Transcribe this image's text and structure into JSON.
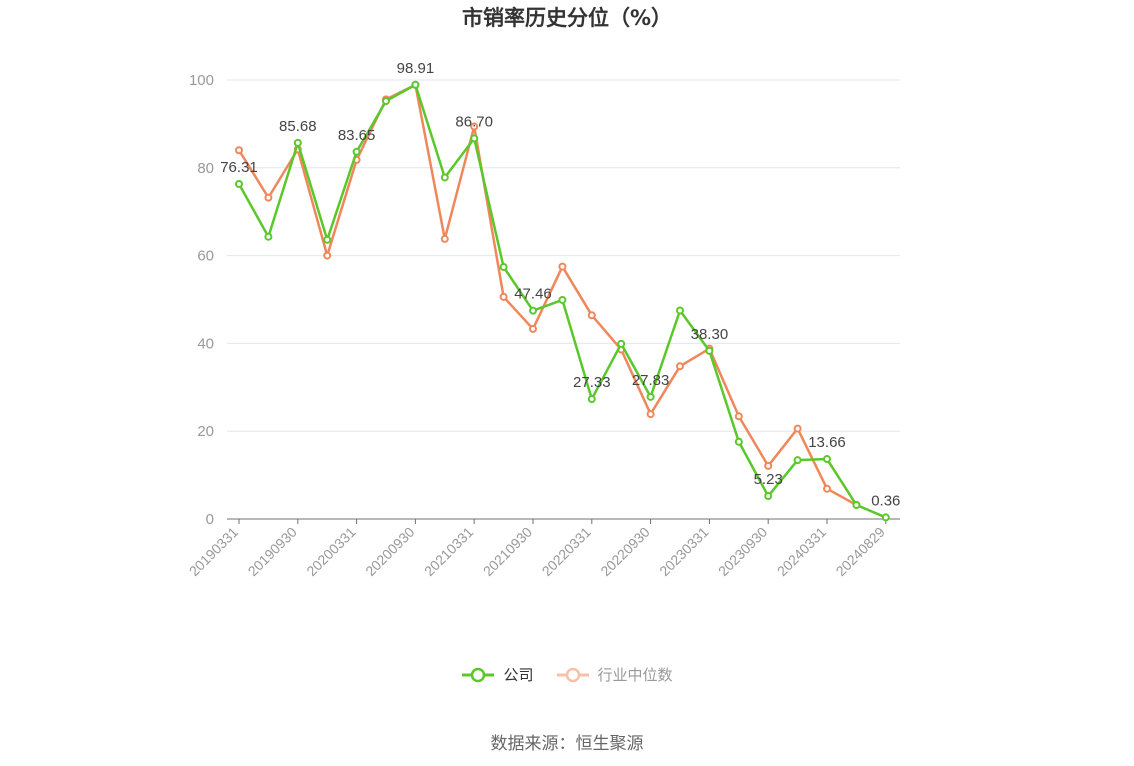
{
  "chart_data": {
    "type": "line",
    "title": "市销率历史分位（%）",
    "xlabel": "",
    "ylabel": "",
    "ylim": [
      0,
      100
    ],
    "yticks": [
      0,
      20,
      40,
      60,
      80,
      100
    ],
    "x_tick_labels": [
      "20190331",
      "20190930",
      "20200331",
      "20200930",
      "20210331",
      "20210930",
      "20220331",
      "20220930",
      "20230331",
      "20230930",
      "20240331",
      "20240829"
    ],
    "legend_position": "bottom",
    "grid": true,
    "series": [
      {
        "name": "公司",
        "color": "#5ac82a",
        "values": [
          76.31,
          64.3,
          85.68,
          63.6,
          83.65,
          95.2,
          98.91,
          77.8,
          86.7,
          57.4,
          47.46,
          49.9,
          27.33,
          39.9,
          27.83,
          47.5,
          38.3,
          17.6,
          5.23,
          13.4,
          13.66,
          3.2,
          0.36
        ],
        "labels": {
          "0": "76.31",
          "2": "85.68",
          "4": "83.65",
          "6": "98.91",
          "8": "86.70",
          "10": "47.46",
          "12": "27.33",
          "14": "27.83",
          "16": "38.30",
          "18": "5.23",
          "20": "13.66",
          "22": "0.36"
        }
      },
      {
        "name": "行业中位数",
        "color": "#f0875a",
        "values": [
          84.0,
          73.2,
          84.2,
          60.0,
          81.8,
          95.6,
          98.9,
          63.8,
          89.4,
          50.6,
          43.3,
          57.5,
          46.4,
          38.6,
          23.9,
          34.8,
          38.8,
          23.4,
          12.1,
          20.6,
          6.9,
          3.2,
          null
        ]
      }
    ]
  },
  "source_text": "数据来源：恒生聚源"
}
